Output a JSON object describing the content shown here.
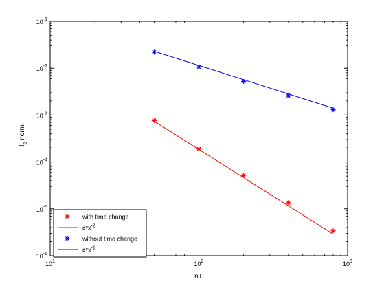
{
  "chart_data": {
    "type": "line",
    "xscale": "log",
    "yscale": "log",
    "xlim": [
      10,
      1000
    ],
    "ylim": [
      1e-06,
      0.1
    ],
    "xlabel": "nT",
    "ylabel": {
      "base": "l",
      "sub": "2",
      "rest": " norm"
    },
    "xticks": [
      {
        "value": 10,
        "base": "10",
        "exp": "1"
      },
      {
        "value": 100,
        "base": "10",
        "exp": "2"
      },
      {
        "value": 1000,
        "base": "10",
        "exp": "3"
      }
    ],
    "yticks": [
      {
        "value": 1e-06,
        "base": "10",
        "exp": "-6"
      },
      {
        "value": 1e-05,
        "base": "10",
        "exp": "-5"
      },
      {
        "value": 0.0001,
        "base": "10",
        "exp": "-4"
      },
      {
        "value": 0.001,
        "base": "10",
        "exp": "-3"
      },
      {
        "value": 0.01,
        "base": "10",
        "exp": "-2"
      },
      {
        "value": 0.1,
        "base": "10",
        "exp": "-1"
      }
    ],
    "grid": false,
    "legend_position": "bottom-left",
    "series": [
      {
        "name": "with time change",
        "kind": "markers",
        "marker": "asterisk",
        "color": "#ff0000",
        "x": [
          50,
          100,
          200,
          400,
          800
        ],
        "y": [
          0.00076,
          0.00019,
          5.2e-05,
          1.35e-05,
          3.4e-06
        ]
      },
      {
        "name": "c*x^-2",
        "legend": {
          "text": "c*x",
          "sup": "-2"
        },
        "kind": "line",
        "color": "#ff0000",
        "x": [
          50,
          800
        ],
        "y": [
          0.00074,
          2.9e-06
        ]
      },
      {
        "name": "without time change",
        "kind": "markers",
        "marker": "asterisk",
        "color": "#0000ff",
        "x": [
          50,
          100,
          200,
          400,
          800
        ],
        "y": [
          0.022,
          0.0105,
          0.0052,
          0.0026,
          0.0013
        ]
      },
      {
        "name": "c*x^-1",
        "legend": {
          "text": "c*x",
          "sup": "-1"
        },
        "kind": "line",
        "color": "#0000ff",
        "x": [
          50,
          800
        ],
        "y": [
          0.023,
          0.0014
        ]
      }
    ]
  }
}
